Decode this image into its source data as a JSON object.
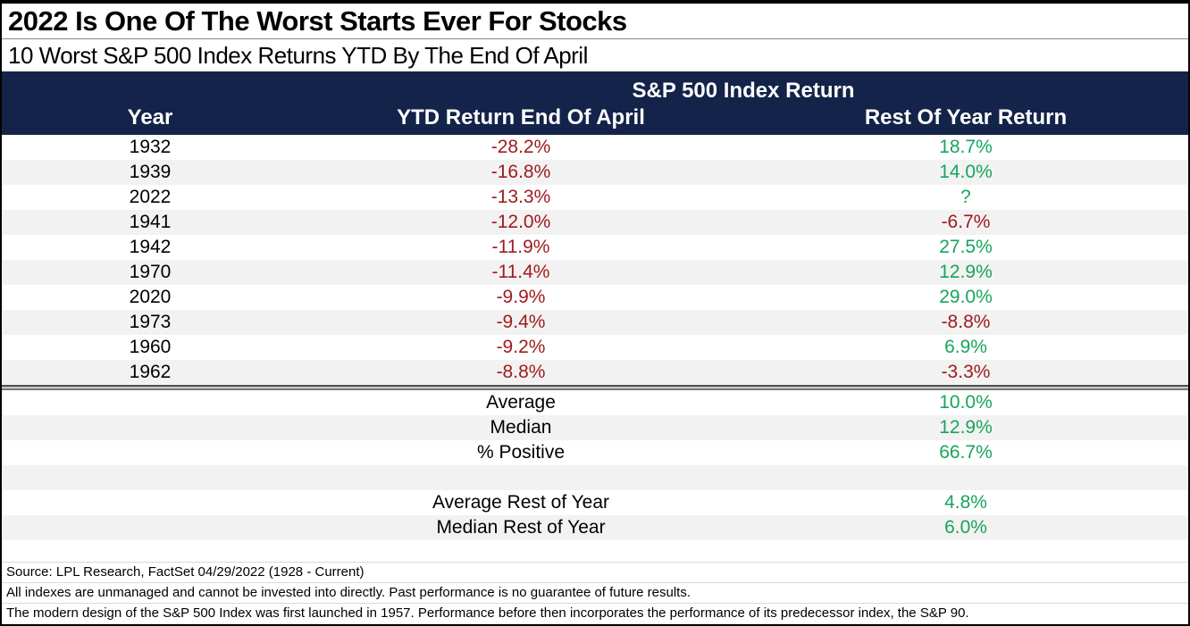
{
  "title": "2022 Is One Of The Worst Starts Ever For Stocks",
  "subtitle": "10 Worst S&P 500 Index Returns YTD By The End Of April",
  "chart_data": {
    "type": "table",
    "group_header": "S&P 500 Index Return",
    "columns": [
      "Year",
      "YTD Return End Of April",
      "Rest Of Year Return"
    ],
    "rows": [
      {
        "year": "1932",
        "ytd": "-28.2%",
        "rest": "18.7%"
      },
      {
        "year": "1939",
        "ytd": "-16.8%",
        "rest": "14.0%"
      },
      {
        "year": "2022",
        "ytd": "-13.3%",
        "rest": "?"
      },
      {
        "year": "1941",
        "ytd": "-12.0%",
        "rest": "-6.7%"
      },
      {
        "year": "1942",
        "ytd": "-11.9%",
        "rest": "27.5%"
      },
      {
        "year": "1970",
        "ytd": "-11.4%",
        "rest": "12.9%"
      },
      {
        "year": "2020",
        "ytd": "-9.9%",
        "rest": "29.0%"
      },
      {
        "year": "1973",
        "ytd": "-9.4%",
        "rest": "-8.8%"
      },
      {
        "year": "1960",
        "ytd": "-9.2%",
        "rest": "6.9%"
      },
      {
        "year": "1962",
        "ytd": "-8.8%",
        "rest": "-3.3%"
      }
    ],
    "summary_stats": [
      {
        "label": "Average",
        "value": "10.0%"
      },
      {
        "label": "Median",
        "value": "12.9%"
      },
      {
        "label": "% Positive",
        "value": "66.7%"
      }
    ],
    "rest_of_year_stats": [
      {
        "label": "Average Rest of Year",
        "value": "4.8%"
      },
      {
        "label": "Median Rest of Year",
        "value": "6.0%"
      }
    ]
  },
  "footnotes": {
    "line1": "Source: LPL Research, FactSet 04/29/2022 (1928 - Current)",
    "line2": "All indexes are unmanaged and cannot be invested into directly. Past performance is no guarantee of future results.",
    "line3": "The modern design of the S&P 500 Index was first launched in 1957. Performance before then incorporates the performance of its predecessor index, the S&P 90."
  },
  "colors": {
    "header_navy": "#142349",
    "negative_red": "#A01B1F",
    "positive_green": "#18A45C",
    "alt_row_gray": "#F2F2F2"
  }
}
